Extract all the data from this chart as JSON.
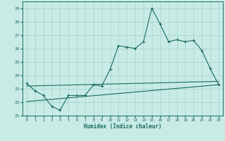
{
  "xlabel": "Humidex (Indice chaleur)",
  "xlim": [
    -0.5,
    23.5
  ],
  "ylim": [
    21,
    29.5
  ],
  "xticks": [
    0,
    1,
    2,
    3,
    4,
    5,
    6,
    7,
    8,
    9,
    10,
    11,
    12,
    13,
    14,
    15,
    16,
    17,
    18,
    19,
    20,
    21,
    22,
    23
  ],
  "yticks": [
    21,
    22,
    23,
    24,
    25,
    26,
    27,
    28,
    29
  ],
  "bg_color": "#c8ebe6",
  "grid_color": "#a0d4cc",
  "line_color": "#1a6b5e",
  "line1_x": [
    0,
    1,
    2,
    3,
    4,
    5,
    6,
    7,
    8,
    9,
    10,
    11,
    12,
    13,
    14,
    15,
    16,
    17,
    18,
    19,
    20,
    21,
    22,
    23
  ],
  "line1_y": [
    23.4,
    22.85,
    22.5,
    21.7,
    21.4,
    22.5,
    22.5,
    22.5,
    23.3,
    23.2,
    24.45,
    26.2,
    26.1,
    26.0,
    26.5,
    29.0,
    27.8,
    26.5,
    26.65,
    26.5,
    26.6,
    25.85,
    24.5,
    23.3
  ],
  "line2_x": [
    0,
    23
  ],
  "line2_y": [
    22.05,
    23.3
  ],
  "line3_x": [
    0,
    23
  ],
  "line3_y": [
    23.2,
    23.55
  ]
}
